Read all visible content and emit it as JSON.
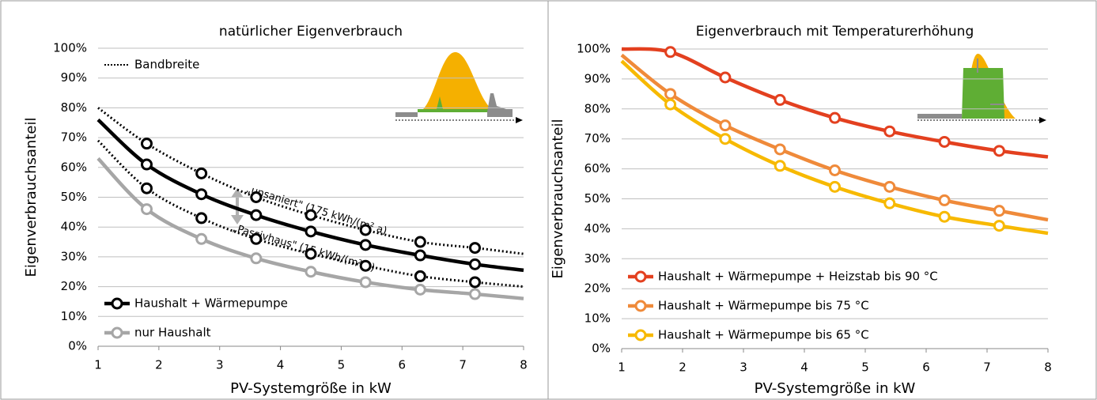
{
  "chart_data": [
    {
      "type": "line",
      "title": "natürlicher Eigenverbrauch",
      "xlabel": "PV-Systemgröße in kW",
      "ylabel": "Eigenverbrauchsanteil",
      "x": [
        1,
        1.8,
        2.7,
        3.6,
        4.5,
        5.4,
        6.3,
        7.2,
        8
      ],
      "marked": [
        false,
        true,
        true,
        true,
        true,
        true,
        true,
        true,
        false
      ],
      "xlim": [
        1,
        8
      ],
      "xticks": [
        1,
        2,
        3,
        4,
        5,
        6,
        7,
        8
      ],
      "ylim": [
        0,
        100
      ],
      "yticks": [
        {
          "value": 0,
          "label": "0%"
        },
        {
          "value": 10,
          "label": "10%"
        },
        {
          "value": 20,
          "label": "20%"
        },
        {
          "value": 30,
          "label": "30%"
        },
        {
          "value": 40,
          "label": "40%"
        },
        {
          "value": 50,
          "label": "50%"
        },
        {
          "value": 60,
          "label": "60%"
        },
        {
          "value": 70,
          "label": "70%"
        },
        {
          "value": 80,
          "label": "80%"
        },
        {
          "value": 90,
          "label": "90%"
        },
        {
          "value": 100,
          "label": "100%"
        }
      ],
      "grid": true,
      "legend": "lower left",
      "series": [
        {
          "name": "Bandbreite",
          "color": "#000000",
          "style": "dotted",
          "legend_corner": "upper left",
          "values": [
            80,
            68,
            58,
            50,
            44,
            39,
            35,
            33,
            31
          ]
        },
        {
          "color": "#000000",
          "style": "dotted",
          "values": [
            69,
            53,
            43,
            36,
            31,
            27,
            23.5,
            21.5,
            20
          ]
        },
        {
          "name": "Haushalt + Wärmepumpe",
          "color": "#000000",
          "style": "solid",
          "values": [
            76,
            61,
            51,
            44,
            38.5,
            34,
            30.5,
            27.5,
            25.5
          ]
        },
        {
          "name": "nur Haushalt",
          "color": "#a6a6a6",
          "style": "solid",
          "values": [
            63,
            46,
            36,
            29.5,
            25,
            21.5,
            19,
            17.5,
            16
          ]
        }
      ],
      "annotations": [
        "„unsaniert\" (175 kWh/(m² a)",
        "„Passivhaus\" (15 kWh/(m² a)"
      ]
    },
    {
      "type": "line",
      "title": "Eigenverbrauch mit Temperaturerhöhung",
      "xlabel": "PV-Systemgröße in kW",
      "ylabel": "Eigenverbrauchsanteil",
      "x": [
        1,
        1.8,
        2.7,
        3.6,
        4.5,
        5.4,
        6.3,
        7.2,
        8
      ],
      "marked": [
        false,
        true,
        true,
        true,
        true,
        true,
        true,
        true,
        false
      ],
      "xlim": [
        1,
        8
      ],
      "xticks": [
        1,
        2,
        3,
        4,
        5,
        6,
        7,
        8
      ],
      "ylim": [
        0,
        100
      ],
      "yticks": [
        {
          "value": 0,
          "label": "0%"
        },
        {
          "value": 10,
          "label": "10%"
        },
        {
          "value": 20,
          "label": "20%"
        },
        {
          "value": 30,
          "label": "30%"
        },
        {
          "value": 40,
          "label": "40%"
        },
        {
          "value": 50,
          "label": "50%"
        },
        {
          "value": 60,
          "label": "60%"
        },
        {
          "value": 70,
          "label": "70%"
        },
        {
          "value": 80,
          "label": "80%"
        },
        {
          "value": 90,
          "label": "90%"
        },
        {
          "value": 100,
          "label": "100%"
        }
      ],
      "grid": true,
      "legend": "lower left",
      "series": [
        {
          "name": "Haushalt + Wärmepumpe + Heizstab bis 90 °C",
          "color": "#e3401f",
          "style": "solid",
          "values": [
            100,
            99,
            90.5,
            83,
            77,
            72.5,
            69,
            66,
            64
          ]
        },
        {
          "name": "Haushalt + Wärmepumpe bis 75 °C",
          "color": "#ef8a3a",
          "style": "solid",
          "values": [
            98,
            85,
            74.5,
            66.5,
            59.5,
            54,
            49.5,
            46,
            43
          ]
        },
        {
          "name": "Haushalt + Wärmepumpe bis 65 °C",
          "color": "#f7b900",
          "style": "solid",
          "values": [
            96,
            81.5,
            70,
            61,
            54,
            48.5,
            44,
            41,
            38.5
          ]
        }
      ]
    }
  ]
}
